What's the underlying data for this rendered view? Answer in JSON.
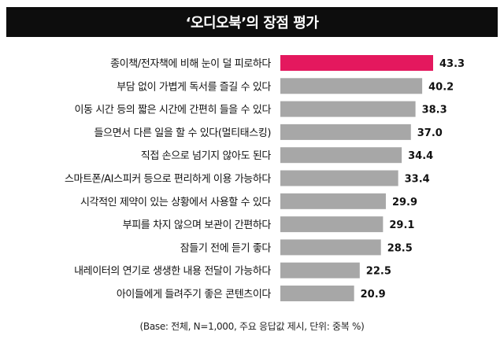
{
  "chart_data": {
    "type": "bar",
    "orientation": "horizontal",
    "title": "‘오디오북’의 장점 평가",
    "note": "(Base: 전체, N=1,000, 주요 응답값 제시, 단위: 중복 %)",
    "categories": [
      "종이책/전자책에 비해 눈이 덜 피로하다",
      "부담 없이 가볍게 독서를 즐길 수 있다",
      "이동 시간 등의 짧은 시간에 간편히 들을 수 있다",
      "들으면서 다른 일을 할 수 있다(멀티태스킹)",
      "직접 손으로 넘기지 않아도 된다",
      "스마트폰/AI스피커 등으로 편리하게 이용 가능하다",
      "시각적인 제약이 있는 상황에서 사용할 수 있다",
      "부피를 차지 않으며 보관이 간편하다",
      "잠들기 전에 듣기 좋다",
      "내레이터의 연기로 생생한 내용 전달이 가능하다",
      "아이들에게 들려주기 좋은 콘텐츠이다"
    ],
    "values": [
      43.3,
      40.2,
      38.3,
      37.0,
      34.4,
      33.4,
      29.9,
      29.1,
      28.5,
      22.5,
      20.9
    ],
    "value_labels": [
      "43.3",
      "40.2",
      "38.3",
      "37.0",
      "34.4",
      "33.4",
      "29.9",
      "29.1",
      "28.5",
      "22.5",
      "20.9"
    ],
    "highlight_index": 0,
    "colors": {
      "highlight": "#e4185e",
      "default": "#a7a7a7"
    },
    "grid": false,
    "legend": "none"
  }
}
